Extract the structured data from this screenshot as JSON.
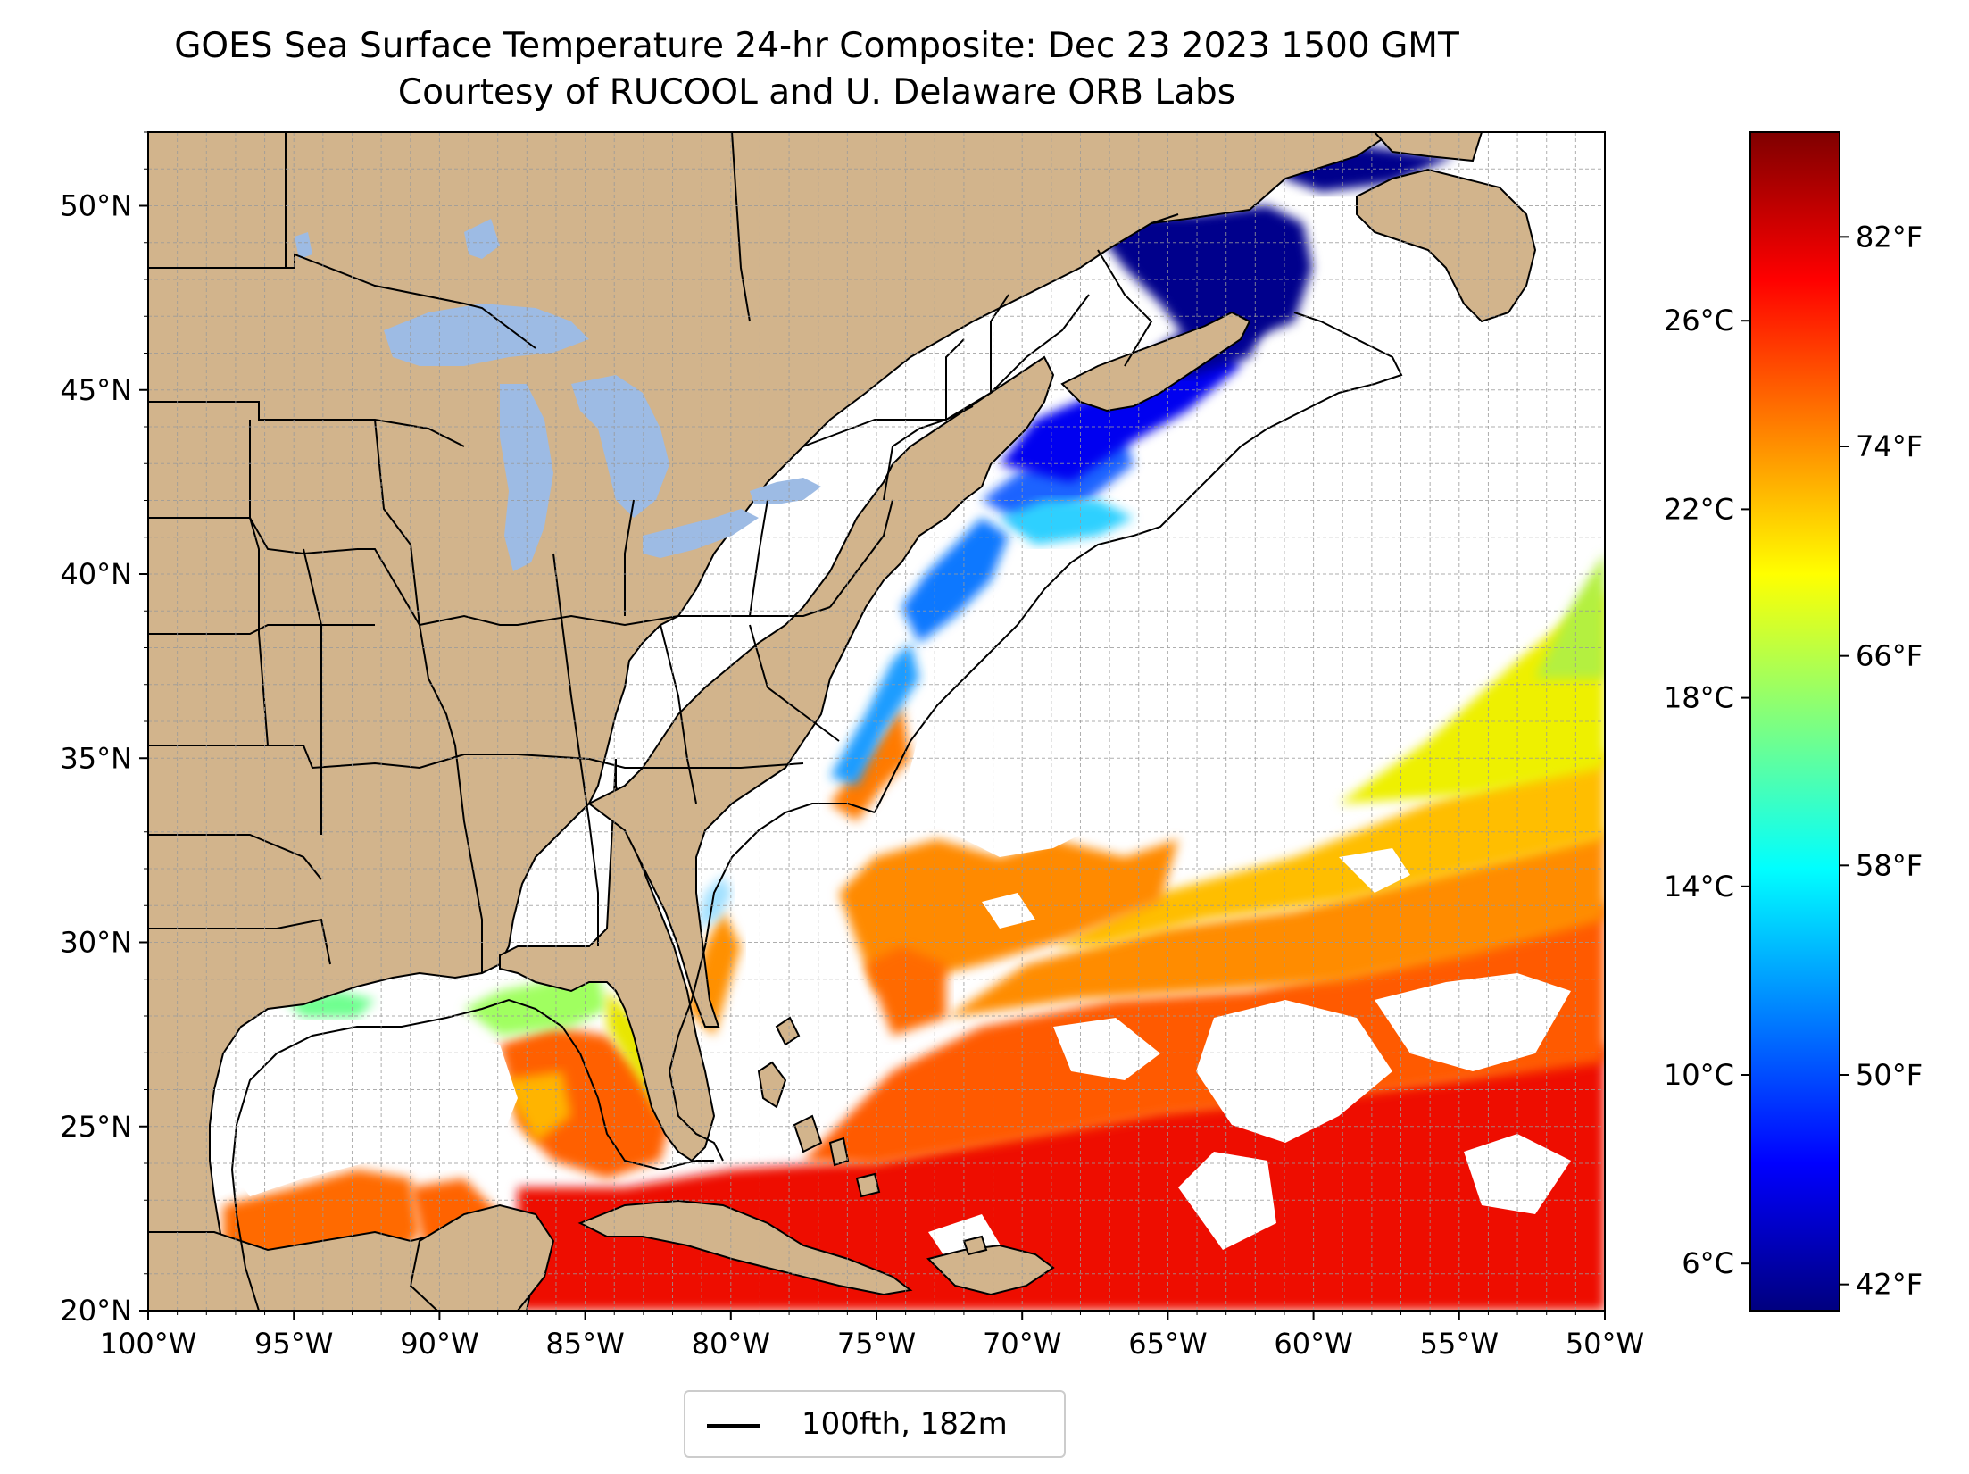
{
  "title": {
    "line1": "GOES Sea Surface Temperature 24-hr Composite: Dec 23 2023 1500 GMT",
    "line2": "Courtesy of RUCOOL and U. Delaware ORB Labs"
  },
  "map": {
    "lon_range": [
      -100,
      -50
    ],
    "lat_range": [
      20,
      52
    ],
    "lon_ticks": [
      {
        "value": -100,
        "label": "100°W"
      },
      {
        "value": -95,
        "label": "95°W"
      },
      {
        "value": -90,
        "label": "90°W"
      },
      {
        "value": -85,
        "label": "85°W"
      },
      {
        "value": -80,
        "label": "80°W"
      },
      {
        "value": -75,
        "label": "75°W"
      },
      {
        "value": -70,
        "label": "70°W"
      },
      {
        "value": -65,
        "label": "65°W"
      },
      {
        "value": -60,
        "label": "60°W"
      },
      {
        "value": -55,
        "label": "55°W"
      },
      {
        "value": -50,
        "label": "50°W"
      }
    ],
    "lat_ticks": [
      {
        "value": 20,
        "label": "20°N"
      },
      {
        "value": 25,
        "label": "25°N"
      },
      {
        "value": 30,
        "label": "30°N"
      },
      {
        "value": 35,
        "label": "35°N"
      },
      {
        "value": 40,
        "label": "40°N"
      },
      {
        "value": 45,
        "label": "45°N"
      },
      {
        "value": 50,
        "label": "50°N"
      }
    ],
    "grid": true,
    "land_color": "#d2b48c",
    "lake_color": "#9dbbe4",
    "colormap": "jet",
    "cmap_stops": [
      "#00007f",
      "#0000ff",
      "#007fff",
      "#00ffff",
      "#7fff7f",
      "#ffff00",
      "#ff7f00",
      "#ff0000",
      "#7f0000"
    ]
  },
  "colorbar": {
    "range_c": [
      5,
      30
    ],
    "celsius_ticks": [
      {
        "value": 6,
        "label": "6°C"
      },
      {
        "value": 10,
        "label": "10°C"
      },
      {
        "value": 14,
        "label": "14°C"
      },
      {
        "value": 18,
        "label": "18°C"
      },
      {
        "value": 22,
        "label": "22°C"
      },
      {
        "value": 26,
        "label": "26°C"
      }
    ],
    "fahrenheit_ticks": [
      {
        "value": 42,
        "label": "42°F"
      },
      {
        "value": 50,
        "label": "50°F"
      },
      {
        "value": 58,
        "label": "58°F"
      },
      {
        "value": 66,
        "label": "66°F"
      },
      {
        "value": 74,
        "label": "74°F"
      },
      {
        "value": 82,
        "label": "82°F"
      }
    ]
  },
  "legend": {
    "label": "100fth, 182m"
  }
}
